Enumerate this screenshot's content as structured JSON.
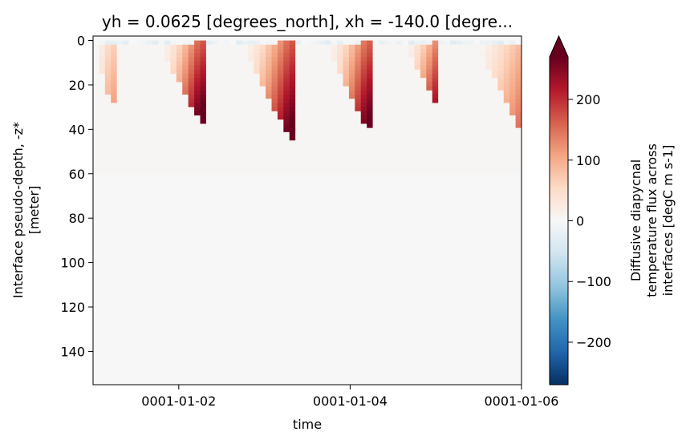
{
  "chart_data": {
    "type": "heatmap",
    "title": "yh = 0.0625 [degrees_north], xh = -140.0 [degre...",
    "xlabel": "time",
    "ylabel": [
      "Interface pseudo-depth, -z*",
      "[meter]"
    ],
    "x_range_days": [
      1.0,
      6.0
    ],
    "x_ticks": [
      {
        "day": 2,
        "label": "0001-01-02"
      },
      {
        "day": 4,
        "label": "0001-01-04"
      },
      {
        "day": 6,
        "label": "0001-01-06"
      }
    ],
    "ylim": [
      155,
      -2
    ],
    "y_ticks": [
      0,
      20,
      40,
      60,
      80,
      100,
      120,
      140
    ],
    "colorbar": {
      "label": [
        "Diffusive diapycnal",
        "temperature flux across",
        "interfaces [degC m s-1]"
      ],
      "vmin": -270,
      "vmax": 270,
      "ticks": [
        -200,
        -100,
        0,
        100,
        200
      ],
      "tick_labels": [
        "−200",
        "−100",
        "0",
        "100",
        "200"
      ],
      "extend": "max",
      "colormap": "RdBu_r"
    },
    "events": [
      {
        "start_day": 1.02,
        "peak_day": 1.2,
        "max_depth": 28,
        "strength": 110,
        "shape": 1.5
      },
      {
        "start_day": 1.78,
        "peak_day": 2.25,
        "max_depth": 37,
        "strength": 300,
        "shape": 1.5
      },
      {
        "start_day": 2.75,
        "peak_day": 3.3,
        "max_depth": 45,
        "strength": 300,
        "shape": 1.4
      },
      {
        "start_day": 3.72,
        "peak_day": 4.2,
        "max_depth": 40,
        "strength": 290,
        "shape": 1.5
      },
      {
        "start_day": 4.65,
        "peak_day": 5.0,
        "max_depth": 28,
        "strength": 230,
        "shape": 1.4
      },
      {
        "start_day": 5.5,
        "peak_day": 6.0,
        "max_depth": 42,
        "strength": 160,
        "shape": 1.2
      }
    ],
    "background_value": 4
  }
}
